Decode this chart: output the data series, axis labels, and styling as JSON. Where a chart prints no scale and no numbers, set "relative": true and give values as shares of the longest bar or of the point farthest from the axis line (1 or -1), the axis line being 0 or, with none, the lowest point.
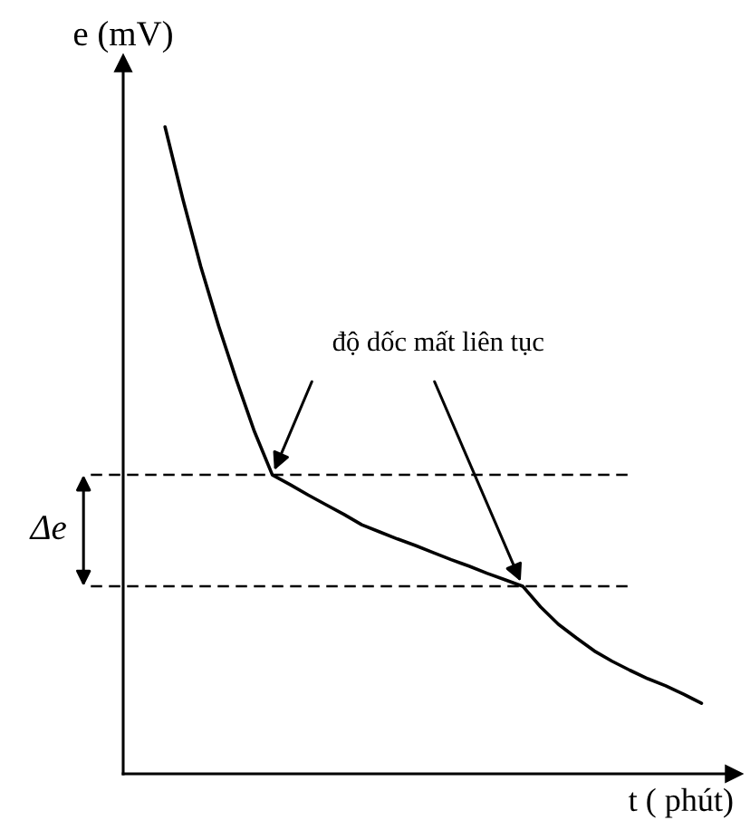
{
  "chart_data": {
    "type": "line",
    "xlabel": "t ( phút)",
    "ylabel": "e (mV)",
    "relative": true,
    "categories": [
      null,
      null,
      null,
      null,
      null,
      null,
      null,
      null,
      null,
      null,
      null,
      null,
      null,
      null,
      null,
      null,
      null,
      null,
      null,
      null,
      null,
      null,
      null,
      null,
      null,
      null,
      null,
      null,
      null,
      null,
      null
    ],
    "series": [
      {
        "color": "#000000",
        "values": [
          1.0,
          0.888,
          0.784,
          0.692,
          0.608,
          0.529,
          0.462,
          0.447,
          0.431,
          0.416,
          0.401,
          0.385,
          0.374,
          0.363,
          0.353,
          0.342,
          0.331,
          0.321,
          0.31,
          0.3,
          0.29,
          0.258,
          0.231,
          0.21,
          0.19,
          0.174,
          0.16,
          0.147,
          0.136,
          0.123,
          0.109
        ]
      }
    ],
    "ref_lines": [
      {
        "axis": "y",
        "value": 0.462,
        "color": "#000000",
        "line_style": "dashed"
      },
      {
        "axis": "y",
        "value": 0.29,
        "color": "#000000",
        "line_style": "dashed"
      }
    ],
    "annotations": [
      "độ dốc mất liên tục",
      "Δe"
    ]
  }
}
